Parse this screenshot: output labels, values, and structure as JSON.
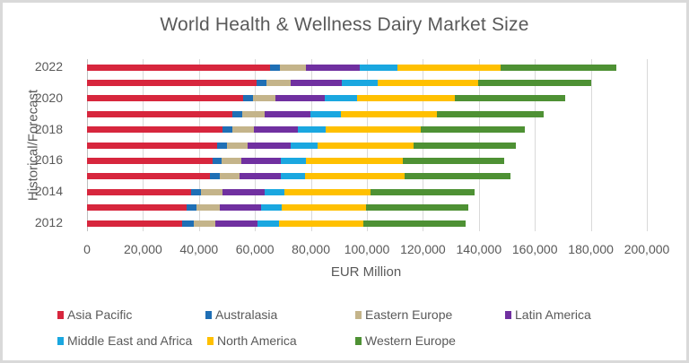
{
  "chart_data": {
    "type": "bar",
    "orientation": "horizontal",
    "stacked": true,
    "title": "World Health & Wellness Dairy Market Size",
    "xlabel": "EUR Million",
    "ylabel": "Historical/Forecast",
    "xlim": [
      0,
      200000
    ],
    "xticks": [
      "0",
      "20,000",
      "40,000",
      "60,000",
      "80,000",
      "100,000",
      "120,000",
      "140,000",
      "160,000",
      "180,000",
      "200,000"
    ],
    "yticks_labeled": [
      "2012",
      "2014",
      "2016",
      "2018",
      "2020",
      "2022"
    ],
    "grid": true,
    "legend_position": "bottom",
    "categories": [
      "2012",
      "2013",
      "2014",
      "2015",
      "2016",
      "2017",
      "2018",
      "2019",
      "2020",
      "2021",
      "2022"
    ],
    "series": [
      {
        "name": "Asia Pacific",
        "color": "#d7263d",
        "values": [
          34000,
          35600,
          37200,
          43900,
          44900,
          46500,
          48400,
          51900,
          55800,
          60600,
          65400
        ]
      },
      {
        "name": "Australasia",
        "color": "#1f6fb5",
        "values": [
          4200,
          3500,
          3500,
          3500,
          3200,
          3500,
          3500,
          3500,
          3500,
          3500,
          3500
        ]
      },
      {
        "name": "Eastern Europe",
        "color": "#c4b48a",
        "values": [
          7700,
          8300,
          7700,
          7100,
          7100,
          7400,
          7700,
          8000,
          8000,
          8700,
          9300
        ]
      },
      {
        "name": "Latin America",
        "color": "#7030a0",
        "values": [
          15100,
          14700,
          15100,
          14700,
          14100,
          15400,
          15700,
          16300,
          17600,
          18300,
          19200
        ]
      },
      {
        "name": "Middle East and Africa",
        "color": "#1aa7e0",
        "values": [
          7700,
          7400,
          7100,
          8700,
          9000,
          9600,
          9900,
          10900,
          11500,
          12800,
          13500
        ]
      },
      {
        "name": "North America",
        "color": "#ffc000",
        "values": [
          30100,
          30100,
          30800,
          35600,
          34600,
          34300,
          34000,
          34300,
          34900,
          35900,
          36900
        ]
      },
      {
        "name": "Western Europe",
        "color": "#4e9134",
        "values": [
          36500,
          36500,
          37200,
          37800,
          36200,
          36500,
          37200,
          38100,
          39400,
          40400,
          41300
        ]
      }
    ]
  },
  "legend": {
    "items": [
      {
        "label": "Asia Pacific",
        "color": "#d7263d"
      },
      {
        "label": "Australasia",
        "color": "#1f6fb5"
      },
      {
        "label": "Eastern Europe",
        "color": "#c4b48a"
      },
      {
        "label": "Latin America",
        "color": "#7030a0"
      },
      {
        "label": "Middle East and Africa",
        "color": "#1aa7e0"
      },
      {
        "label": "North America",
        "color": "#ffc000"
      },
      {
        "label": "Western Europe",
        "color": "#4e9134"
      }
    ]
  }
}
